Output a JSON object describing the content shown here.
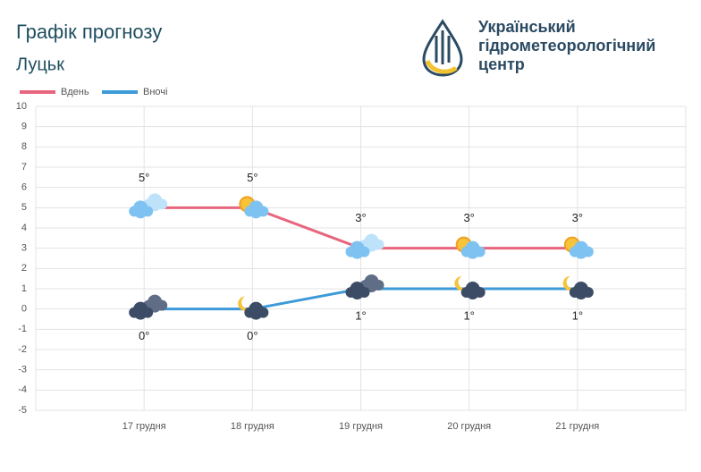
{
  "header": {
    "title": "Графік прогнозу",
    "city": "Луцьк"
  },
  "logo": {
    "lines": [
      "Український",
      "гідрометеорологічний",
      "центр"
    ]
  },
  "chart_data": {
    "type": "line",
    "categories": [
      "17 грудня",
      "18 грудня",
      "19 грудня",
      "20 грудня",
      "21 грудня"
    ],
    "series": [
      {
        "name": "Вдень",
        "color": "#e8657e",
        "values": [
          5,
          5,
          3,
          3,
          3
        ],
        "value_labels": [
          "5°",
          "5°",
          "3°",
          "3°",
          "3°"
        ]
      },
      {
        "name": "Вночі",
        "color": "#3c9ad8",
        "values": [
          0,
          0,
          1,
          1,
          1
        ],
        "value_labels": [
          "0°",
          "0°",
          "1°",
          "1°",
          "1°"
        ]
      }
    ],
    "ylim": [
      -5,
      10
    ],
    "yticks": [
      -5,
      -4,
      -3,
      -2,
      -1,
      0,
      1,
      2,
      3,
      4,
      5,
      6,
      7,
      8,
      9,
      10
    ],
    "grid": true
  }
}
